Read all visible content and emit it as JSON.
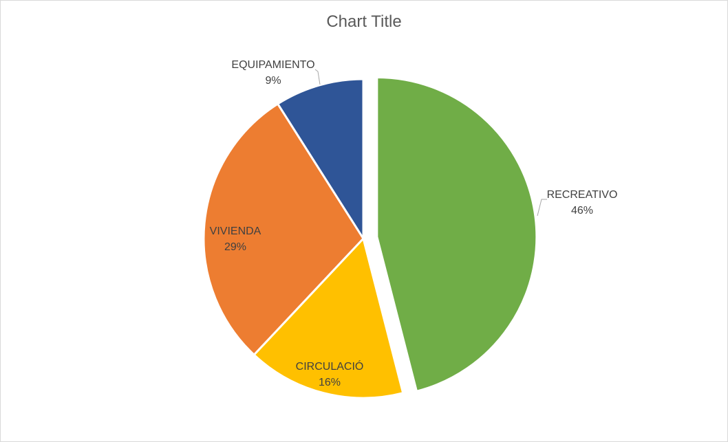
{
  "chart_data": {
    "type": "pie",
    "title": "Chart Title",
    "categories": [
      "RECREATIVO",
      "CIRCULACIÓ",
      "VIVIENDA",
      "EQUIPAMIENTO"
    ],
    "values": [
      46,
      16,
      29,
      9
    ],
    "value_labels": [
      "46%",
      "16%",
      "29%",
      "9%"
    ],
    "colors": [
      "#70ad47",
      "#ffc000",
      "#ed7d31",
      "#2f5597"
    ],
    "exploded": "RECREATIVO",
    "start_angle": "12 o'clock, clockwise",
    "legend": "none"
  }
}
